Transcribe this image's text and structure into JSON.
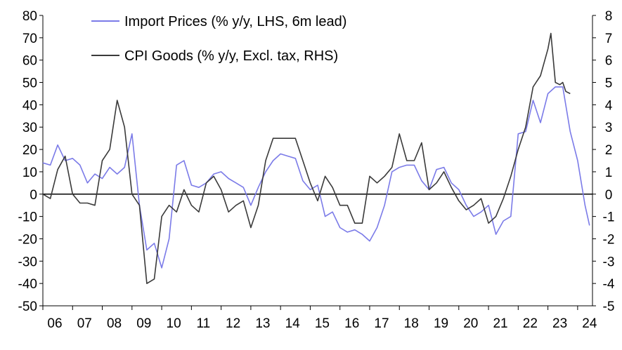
{
  "chart_data": {
    "type": "line",
    "title": "",
    "xlabel": "",
    "ylabel_left": "",
    "ylabel_right": "",
    "x_tick_labels": [
      "06",
      "07",
      "08",
      "09",
      "10",
      "11",
      "12",
      "13",
      "14",
      "15",
      "16",
      "17",
      "18",
      "19",
      "20",
      "21",
      "22",
      "23",
      "24"
    ],
    "x_range": [
      2006.0,
      2024.5
    ],
    "ylim_left": [
      -50,
      80
    ],
    "ylim_right": [
      -5,
      8
    ],
    "y_ticks_left": [
      80,
      70,
      60,
      50,
      40,
      30,
      20,
      10,
      0,
      -10,
      -20,
      -30,
      -40,
      -50
    ],
    "y_ticks_right": [
      8,
      7,
      6,
      5,
      4,
      3,
      2,
      1,
      0,
      -1,
      -2,
      -3,
      -4,
      -5
    ],
    "legend_position": "top-center",
    "series": [
      {
        "name": "Import Prices (% y/y, LHS, 6m lead)",
        "axis": "left",
        "color": "#7b7be8",
        "x": [
          2006.0,
          2006.25,
          2006.5,
          2006.75,
          2007.0,
          2007.25,
          2007.5,
          2007.75,
          2008.0,
          2008.25,
          2008.5,
          2008.75,
          2009.0,
          2009.25,
          2009.5,
          2009.75,
          2010.0,
          2010.25,
          2010.5,
          2010.75,
          2011.0,
          2011.25,
          2011.5,
          2011.75,
          2012.0,
          2012.25,
          2012.5,
          2012.75,
          2013.0,
          2013.25,
          2013.5,
          2013.75,
          2014.0,
          2014.25,
          2014.5,
          2014.75,
          2015.0,
          2015.25,
          2015.5,
          2015.75,
          2016.0,
          2016.25,
          2016.5,
          2016.75,
          2017.0,
          2017.25,
          2017.5,
          2017.75,
          2018.0,
          2018.25,
          2018.5,
          2018.75,
          2019.0,
          2019.25,
          2019.5,
          2019.75,
          2020.0,
          2020.25,
          2020.5,
          2020.75,
          2021.0,
          2021.25,
          2021.5,
          2021.75,
          2022.0,
          2022.25,
          2022.5,
          2022.75,
          2023.0,
          2023.25,
          2023.5,
          2023.75,
          2024.0,
          2024.25,
          2024.4
        ],
        "values": [
          14,
          13,
          22,
          15,
          16,
          13,
          5,
          9,
          7,
          12,
          9,
          12,
          27,
          -5,
          -25,
          -22,
          -33,
          -20,
          13,
          15,
          4,
          3,
          5,
          9,
          10,
          7,
          5,
          3,
          -5,
          3,
          10,
          15,
          18,
          17,
          16,
          6,
          2,
          4,
          -10,
          -8,
          -15,
          -17,
          -16,
          -18,
          -21,
          -15,
          -5,
          10,
          12,
          13,
          13,
          6,
          2,
          11,
          12,
          5,
          2,
          -5,
          -10,
          -8,
          -5,
          -18,
          -12,
          -10,
          27,
          28,
          42,
          32,
          45,
          48,
          48,
          28,
          15,
          -5,
          -14
        ]
      },
      {
        "name": "CPI Goods (% y/y, Excl. tax, RHS)",
        "axis": "right",
        "color": "#3a3a3a",
        "x": [
          2006.0,
          2006.25,
          2006.5,
          2006.75,
          2007.0,
          2007.25,
          2007.5,
          2007.75,
          2008.0,
          2008.25,
          2008.5,
          2008.75,
          2009.0,
          2009.25,
          2009.5,
          2009.75,
          2010.0,
          2010.25,
          2010.5,
          2010.75,
          2011.0,
          2011.25,
          2011.5,
          2011.75,
          2012.0,
          2012.25,
          2012.5,
          2012.75,
          2013.0,
          2013.25,
          2013.5,
          2013.75,
          2014.0,
          2014.25,
          2014.5,
          2014.75,
          2015.0,
          2015.25,
          2015.5,
          2015.75,
          2016.0,
          2016.25,
          2016.5,
          2016.75,
          2017.0,
          2017.25,
          2017.5,
          2017.75,
          2018.0,
          2018.25,
          2018.5,
          2018.75,
          2019.0,
          2019.25,
          2019.5,
          2019.75,
          2020.0,
          2020.25,
          2020.5,
          2020.75,
          2021.0,
          2021.25,
          2021.5,
          2021.75,
          2022.0,
          2022.25,
          2022.5,
          2022.75,
          2023.0,
          2023.1,
          2023.25,
          2023.4,
          2023.5,
          2023.6,
          2023.75
        ],
        "values": [
          0,
          -0.2,
          1.1,
          1.7,
          0,
          -0.4,
          -0.4,
          -0.5,
          1.5,
          2.0,
          4.2,
          3.0,
          0,
          -0.5,
          -4.0,
          -3.8,
          -1.0,
          -0.5,
          -0.8,
          0.2,
          -0.5,
          -0.8,
          0.5,
          0.8,
          0.2,
          -0.8,
          -0.5,
          -0.3,
          -1.5,
          -0.5,
          1.5,
          2.5,
          2.5,
          2.5,
          2.5,
          1.5,
          0.5,
          -0.3,
          0.8,
          0.3,
          -0.5,
          -0.5,
          -1.3,
          -1.3,
          0.8,
          0.5,
          0.8,
          1.2,
          2.7,
          1.5,
          1.5,
          2.3,
          0.2,
          0.5,
          1.0,
          0.3,
          -0.3,
          -0.7,
          -0.5,
          -0.2,
          -1.3,
          -1.0,
          -0.2,
          0.8,
          2.0,
          3.0,
          4.8,
          5.3,
          6.5,
          7.2,
          5.0,
          4.9,
          5.0,
          4.6,
          4.5
        ]
      }
    ]
  }
}
